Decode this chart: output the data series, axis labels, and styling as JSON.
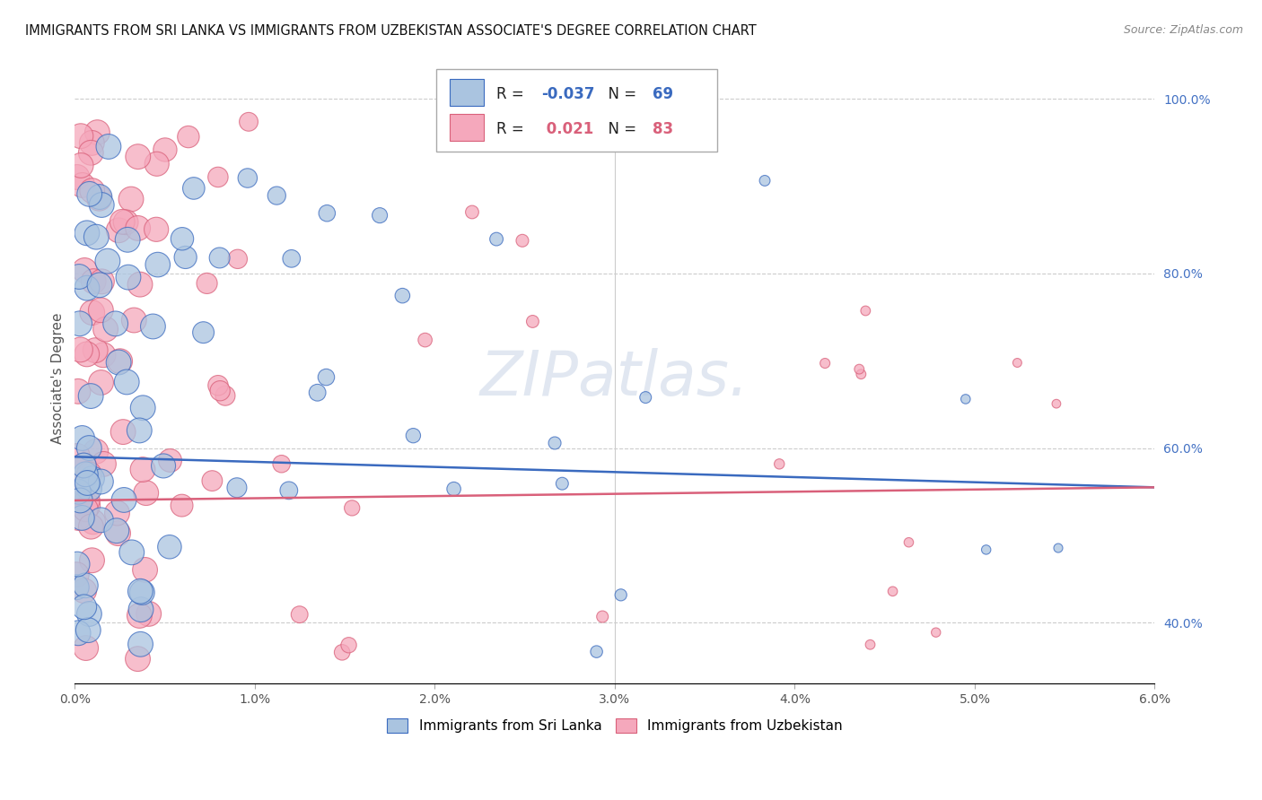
{
  "title": "IMMIGRANTS FROM SRI LANKA VS IMMIGRANTS FROM UZBEKISTAN ASSOCIATE'S DEGREE CORRELATION CHART",
  "source": "Source: ZipAtlas.com",
  "series1_label": "Immigrants from Sri Lanka",
  "series2_label": "Immigrants from Uzbekistan",
  "R1": "-0.037",
  "N1": "69",
  "R2": "0.021",
  "N2": "83",
  "color1": "#aac4e0",
  "color2": "#f5a8bc",
  "trendline1_color": "#3a6abf",
  "trendline2_color": "#d9607a",
  "watermark": "ZIPatlas.",
  "background_color": "#ffffff",
  "xlim": [
    0.0,
    6.0
  ],
  "ylim": [
    33.0,
    103.0
  ],
  "yticks": [
    40,
    60,
    80,
    100
  ],
  "ytick_labels": [
    "40.0%",
    "60.0%",
    "80.0%",
    "100.0%"
  ],
  "xticks": [
    0,
    1,
    2,
    3,
    4,
    5,
    6
  ],
  "xtick_labels": [
    "0.0%",
    "1.0%",
    "2.0%",
    "3.0%",
    "4.0%",
    "5.0%",
    "6.0%"
  ]
}
